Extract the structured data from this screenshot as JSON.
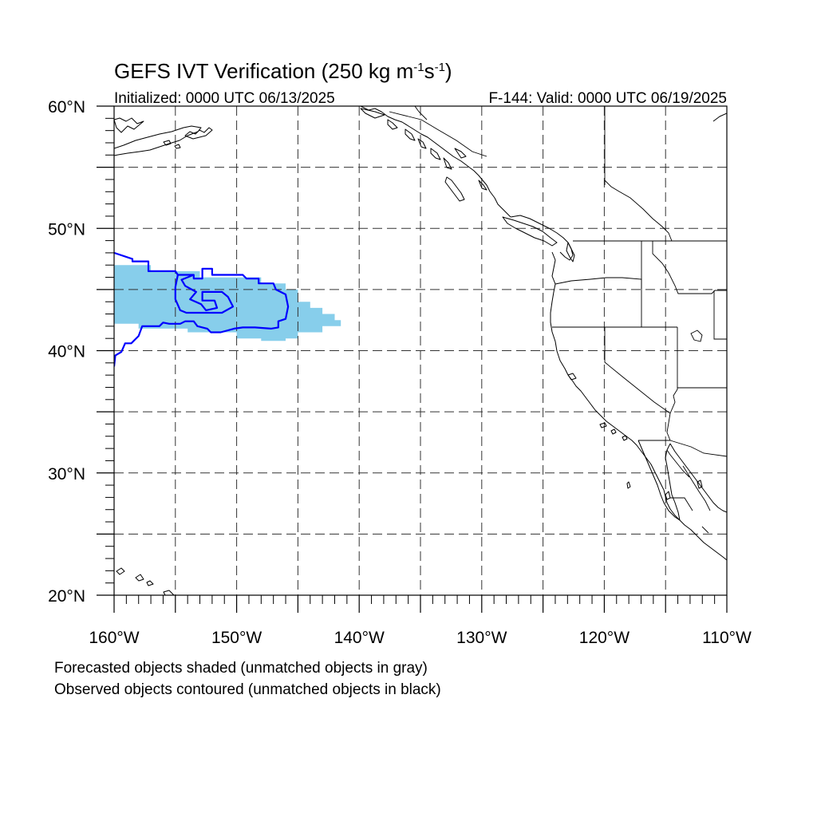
{
  "title": {
    "main": "GEFS IVT Verification (250 kg m",
    "exp1": "-1",
    "mid": "s",
    "exp2": "-1",
    "close": ")"
  },
  "initialized": "Initialized: 0000 UTC 06/13/2025",
  "valid": "F-144: Valid: 0000 UTC 06/19/2025",
  "map": {
    "projection": "cylindrical equidistant",
    "lon_range": [
      -160,
      -110
    ],
    "lat_range": [
      20,
      60
    ],
    "grid_spacing_deg": 5,
    "gridlines": "dashed",
    "lon_ticks": [
      "160°W",
      "150°W",
      "140°W",
      "130°W",
      "120°W",
      "110°W"
    ],
    "lat_ticks": [
      "60°N",
      "50°N",
      "40°N",
      "30°N",
      "20°N"
    ]
  },
  "colors": {
    "forecast_fill": "#87ceeb",
    "observed_contour": "#0000ff",
    "coast": "#000000"
  },
  "objects": {
    "forecast": {
      "label": "matched forecast object",
      "color": "#87ceeb",
      "polygon": [
        [
          -160,
          47
        ],
        [
          -157,
          47
        ],
        [
          -157,
          46.5
        ],
        [
          -153,
          46.5
        ],
        [
          -153,
          46
        ],
        [
          -148,
          46
        ],
        [
          -148,
          45.5
        ],
        [
          -146,
          45.5
        ],
        [
          -146,
          45
        ],
        [
          -145,
          45
        ],
        [
          -145,
          44
        ],
        [
          -144,
          44
        ],
        [
          -144,
          43.5
        ],
        [
          -143,
          43.5
        ],
        [
          -143,
          43
        ],
        [
          -142,
          43
        ],
        [
          -142,
          42.5
        ],
        [
          -141.5,
          42.5
        ],
        [
          -141.5,
          42
        ],
        [
          -143,
          42
        ],
        [
          -143,
          41.5
        ],
        [
          -145,
          41.5
        ],
        [
          -145,
          41
        ],
        [
          -146,
          41
        ],
        [
          -146,
          40.8
        ],
        [
          -148,
          40.8
        ],
        [
          -148,
          41
        ],
        [
          -150,
          41
        ],
        [
          -150,
          41.5
        ],
        [
          -154,
          41.5
        ],
        [
          -154,
          41.8
        ],
        [
          -158,
          41.8
        ],
        [
          -158,
          42.2
        ],
        [
          -160,
          42.2
        ]
      ]
    },
    "observed": {
      "label": "matched observed object",
      "color": "#0000ff",
      "polygon": [
        [
          -160,
          48
        ],
        [
          -158.5,
          47.5
        ],
        [
          -158.5,
          47.3
        ],
        [
          -157.2,
          47.3
        ],
        [
          -157.2,
          46.5
        ],
        [
          -155,
          46.5
        ],
        [
          -154.8,
          46.2
        ],
        [
          -153.5,
          46.2
        ],
        [
          -153.5,
          45.9
        ],
        [
          -152.8,
          45.9
        ],
        [
          -152.8,
          46.7
        ],
        [
          -152,
          46.7
        ],
        [
          -152,
          46.2
        ],
        [
          -149.5,
          46.2
        ],
        [
          -149.2,
          45.9
        ],
        [
          -148.2,
          45.9
        ],
        [
          -148.2,
          45.5
        ],
        [
          -147,
          45.5
        ],
        [
          -146.8,
          45
        ],
        [
          -146,
          44.6
        ],
        [
          -145.8,
          43.6
        ],
        [
          -146,
          42.6
        ],
        [
          -146.6,
          42.4
        ],
        [
          -146.6,
          41.9
        ],
        [
          -147.2,
          41.8
        ],
        [
          -148.5,
          41.9
        ],
        [
          -149.5,
          41.9
        ],
        [
          -150.2,
          41.8
        ],
        [
          -151.3,
          41.5
        ],
        [
          -152.1,
          41.5
        ],
        [
          -152.4,
          41.8
        ],
        [
          -153.2,
          42
        ],
        [
          -153.5,
          42.4
        ],
        [
          -154.2,
          42.4
        ],
        [
          -154.6,
          42.2
        ],
        [
          -155.5,
          42.2
        ],
        [
          -156,
          42.3
        ],
        [
          -156.3,
          42
        ],
        [
          -157.7,
          42
        ],
        [
          -158,
          41.2
        ],
        [
          -158.6,
          40.6
        ],
        [
          -159.1,
          40.6
        ],
        [
          -159.4,
          39.9
        ],
        [
          -159.9,
          39.6
        ],
        [
          -160,
          38.7
        ]
      ]
    },
    "observed_inner": {
      "label": "observed object interior boundary",
      "color": "#0000ff",
      "polyline": [
        [
          -153.5,
          46.2
        ],
        [
          -154.5,
          45.8
        ],
        [
          -154.2,
          45.3
        ],
        [
          -153.3,
          44.8
        ],
        [
          -153.8,
          44.2
        ],
        [
          -152.9,
          43.8
        ],
        [
          -152.5,
          43.3
        ],
        [
          -151.6,
          43.5
        ],
        [
          -151.8,
          44.1
        ],
        [
          -152.8,
          44.1
        ],
        [
          -152.8,
          44.8
        ],
        [
          -151.2,
          44.8
        ],
        [
          -150.7,
          44.4
        ],
        [
          -150.3,
          43.6
        ],
        [
          -151.2,
          43.1
        ],
        [
          -153.2,
          43.1
        ],
        [
          -154.1,
          43.1
        ],
        [
          -154.6,
          43.3
        ],
        [
          -155,
          44.2
        ],
        [
          -155,
          45.2
        ],
        [
          -154.8,
          46.2
        ]
      ]
    }
  },
  "notes": [
    "Forecasted objects shaded (unmatched objects in gray)",
    "Observed objects contoured (unmatched objects in black)"
  ]
}
